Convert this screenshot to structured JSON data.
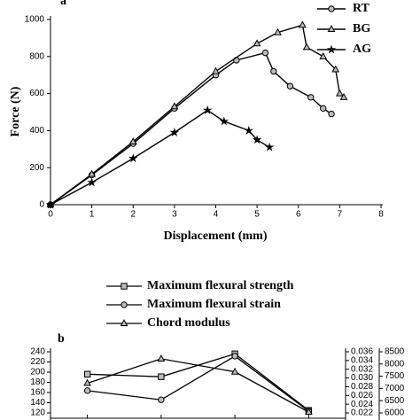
{
  "chart_data": [
    {
      "type": "line",
      "annotation": "a",
      "xlabel": "Displacement (mm)",
      "ylabel": "Force (N)",
      "xlim": [
        0,
        8
      ],
      "xticks": [
        0,
        1,
        2,
        3,
        4,
        5,
        6,
        7,
        8
      ],
      "ylim": [
        0,
        1000
      ],
      "yticks": [
        0,
        200,
        400,
        600,
        800,
        1000
      ],
      "legend": "upper right",
      "series": [
        {
          "name": "RT",
          "color": "#000000",
          "marker": "circle",
          "x": [
            0,
            1,
            2,
            3,
            4,
            4.5,
            5.2,
            5.4,
            5.8,
            6.3,
            6.6,
            6.8
          ],
          "values": [
            0,
            160,
            330,
            520,
            700,
            780,
            820,
            720,
            640,
            580,
            520,
            490
          ]
        },
        {
          "name": "BG",
          "color": "#000000",
          "marker": "triangle",
          "x": [
            0,
            1,
            2,
            3,
            4,
            5,
            5.5,
            6.1,
            6.2,
            6.6,
            6.9,
            7,
            7.1
          ],
          "values": [
            0,
            165,
            340,
            530,
            720,
            870,
            930,
            970,
            850,
            800,
            730,
            600,
            580
          ]
        },
        {
          "name": "AG",
          "color": "#000000",
          "marker": "star",
          "x": [
            0,
            1,
            2,
            3,
            3.8,
            4.2,
            4.8,
            5,
            5.3
          ],
          "values": [
            0,
            120,
            250,
            390,
            510,
            450,
            400,
            350,
            310
          ]
        }
      ]
    },
    {
      "type": "line",
      "annotation": "b",
      "categories": [
        null,
        null,
        null,
        null
      ],
      "ylim": [
        120,
        240
      ],
      "yticks": [
        120,
        140,
        160,
        180,
        200,
        220,
        240
      ],
      "y2lim": [
        0.022,
        0.036
      ],
      "y2ticks": [
        0.022,
        0.024,
        0.026,
        0.028,
        {
          "value": 0.03,
          "label": "0.030"
        },
        0.032,
        0.034,
        0.036
      ],
      "y3lim": [
        6000,
        8500
      ],
      "y3ticks": [
        6000,
        6500,
        7000,
        7500,
        8000,
        8500
      ],
      "legend": "upper center",
      "series": [
        {
          "name": "Maximum flexural strength",
          "color": "#000000",
          "marker": "square",
          "axis": "y",
          "values": [
            196,
            191,
            236,
            125
          ]
        },
        {
          "name": "Maximum flexural strain",
          "color": "#000000",
          "marker": "circle",
          "axis": "y2",
          "values": [
            0.0271,
            0.025,
            0.035,
            0.0224
          ]
        },
        {
          "name": "Chord modulus",
          "color": "#000000",
          "marker": "triangle",
          "axis": "y3",
          "values": [
            7214,
            8214,
            7679,
            6036
          ]
        }
      ]
    }
  ]
}
